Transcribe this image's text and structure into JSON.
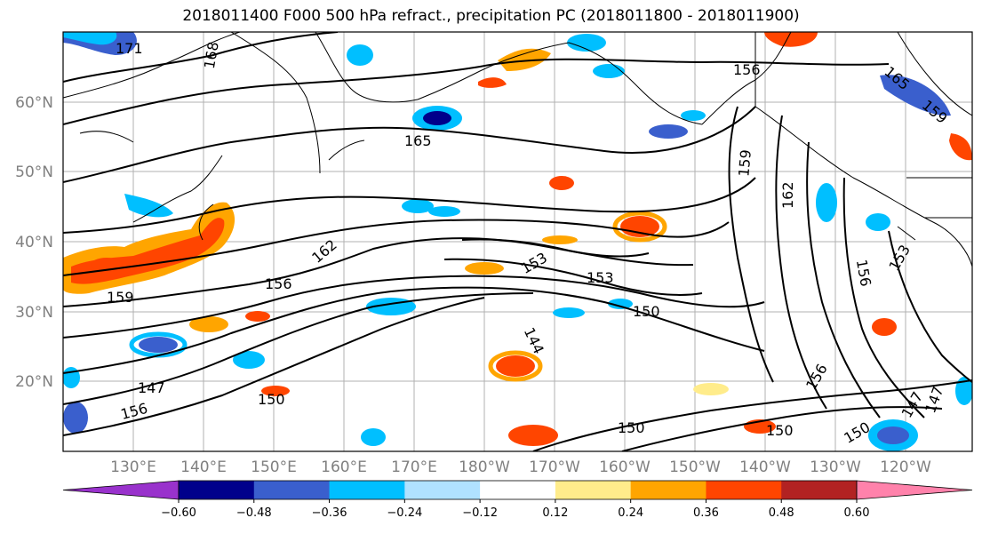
{
  "title": "2018011400 F000 500 hPa refract., precipitation PC (2018011800 - 2018011900)",
  "map": {
    "lat_labels": [
      "60°N",
      "50°N",
      "40°N",
      "30°N",
      "20°N"
    ],
    "lon_labels": [
      "130°E",
      "140°E",
      "150°E",
      "160°E",
      "170°E",
      "180°W",
      "170°W",
      "160°W",
      "150°W",
      "140°W",
      "130°W",
      "120°W"
    ],
    "contour_labels": [
      "171",
      "168",
      "165",
      "156",
      "162",
      "159",
      "153",
      "153",
      "150",
      "156",
      "159",
      "156",
      "147",
      "150",
      "156",
      "147",
      "156",
      "150",
      "150",
      "144",
      "153",
      "165",
      "159",
      "147",
      "162",
      "150"
    ]
  },
  "colorbar": {
    "ticks": [
      "−0.60",
      "−0.48",
      "−0.36",
      "−0.24",
      "−0.12",
      "0.12",
      "0.24",
      "0.36",
      "0.48",
      "0.60"
    ],
    "colors": [
      "#9932cc",
      "#00008b",
      "#3a5fcd",
      "#00bfff",
      "#b0e2ff",
      "#ffffff",
      "#ffec8b",
      "#ffa500",
      "#ff4500",
      "#b22222",
      "#ff82ab"
    ]
  }
}
